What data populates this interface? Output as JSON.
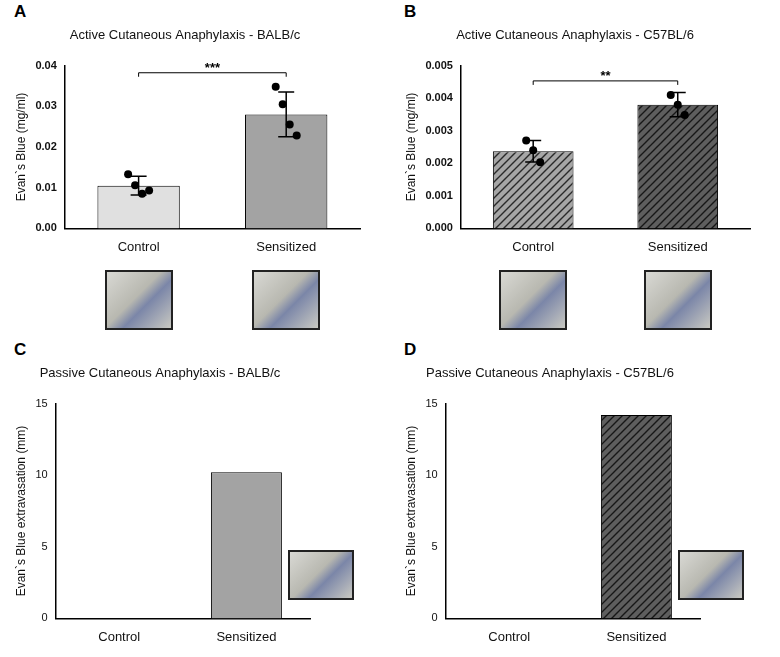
{
  "chart_data": [
    {
      "panel_label": "A",
      "type": "bar",
      "title": "Active Cutaneous Anaphylaxis - BALB/c",
      "y_label": "Evan`s Blue (mg/ml)",
      "categories": [
        "Control",
        "Sensitized"
      ],
      "values": [
        0.0105,
        0.028
      ],
      "errors": [
        0.0023,
        0.0055
      ],
      "points": [
        [
          0.0133,
          0.0106,
          0.0085,
          0.0093
        ],
        [
          0.0348,
          0.0305,
          0.0255,
          0.0228
        ]
      ],
      "colors": [
        "#e0e0e0",
        "#a3a3a3"
      ],
      "annotation": "***",
      "ylim": [
        0,
        0.04
      ],
      "yticks": [
        {
          "value": 0,
          "label": "0.00"
        },
        {
          "value": 0.01,
          "label": "0.01"
        },
        {
          "value": 0.02,
          "label": "0.02"
        },
        {
          "value": 0.03,
          "label": "0.03"
        },
        {
          "value": 0.04,
          "label": "0.04"
        }
      ],
      "grid": false
    },
    {
      "panel_label": "B",
      "type": "bar",
      "title": "Active Cutaneous Anaphylaxis - C57BL/6",
      "y_label": "Evan`s Blue (mg/ml)",
      "categories": [
        "Control",
        "Sensitized"
      ],
      "values": [
        0.00237,
        0.0038
      ],
      "errors": [
        0.00033,
        0.00037
      ],
      "points": [
        [
          0.0027,
          0.0024,
          0.00203
        ],
        [
          0.0041,
          0.0038,
          0.00348
        ]
      ],
      "colors": [
        "#a6a6a6",
        "#5e5e5e"
      ],
      "annotation": "**",
      "ylim": [
        0,
        0.005
      ],
      "yticks": [
        {
          "value": 0,
          "label": "0.000"
        },
        {
          "value": 0.001,
          "label": "0.001"
        },
        {
          "value": 0.002,
          "label": "0.002"
        },
        {
          "value": 0.003,
          "label": "0.003"
        },
        {
          "value": 0.004,
          "label": "0.004"
        },
        {
          "value": 0.005,
          "label": "0.005"
        }
      ],
      "grid": false
    },
    {
      "panel_label": "C",
      "type": "bar",
      "title": "Passive Cutaneous Anaphylaxis - BALB/c",
      "y_label": "Evan`s Blue extravasation (mm)",
      "categories": [
        "Control",
        "Sensitized"
      ],
      "values": [
        0,
        10.2
      ],
      "colors": [
        "#a3a3a3",
        "#a3a3a3"
      ],
      "ylim": [
        0,
        15
      ],
      "yticks": [
        0,
        5,
        10,
        15
      ],
      "grid": false
    },
    {
      "panel_label": "D",
      "type": "bar",
      "title": "Passive Cutaneous Anaphylaxis - C57BL/6",
      "y_label": "Evan`s Blue extravasation (mm)",
      "categories": [
        "Control",
        "Sensitized"
      ],
      "values": [
        0,
        14.2
      ],
      "colors": [
        "#5e5e5e",
        "#5e5e5e"
      ],
      "ylim": [
        0,
        15
      ],
      "yticks": [
        0,
        5,
        10,
        15
      ],
      "grid": false
    }
  ]
}
